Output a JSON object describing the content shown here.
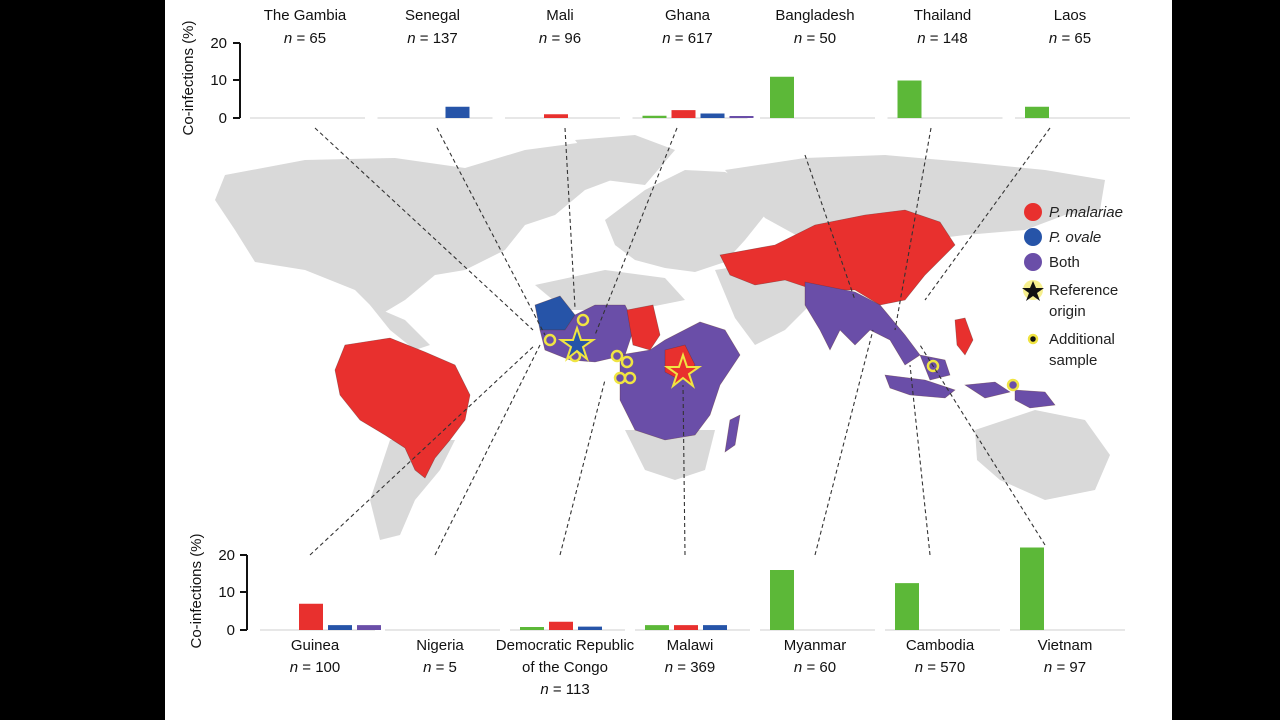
{
  "colors": {
    "p_malariae": "#e8302e",
    "p_ovale": "#2654a8",
    "both": "#6a4ea8",
    "mono_green": "#5cb838",
    "land": "#d9d9d9",
    "marker": "#f0e442"
  },
  "axis": {
    "ylabel": "Co-infections (%)",
    "top_ticks": [
      "20",
      "10",
      "0"
    ],
    "bottom_ticks": [
      "20",
      "10",
      "0"
    ],
    "ylim": [
      0,
      22
    ]
  },
  "legend": {
    "p_malariae": "P. malariae",
    "p_ovale": "P. ovale",
    "both": "Both",
    "reference_line1": "Reference",
    "reference_line2": "origin",
    "additional_line1": "Additional",
    "additional_line2": "sample"
  },
  "chart_data": [
    {
      "type": "bar",
      "panel": "top",
      "ylabel": "Co-infections (%)",
      "ylim": [
        0,
        20
      ],
      "countries": [
        {
          "name": "The Gambia",
          "n_label": "= 65",
          "values": [
            0,
            0,
            0,
            0
          ]
        },
        {
          "name": "Senegal",
          "n_label": "= 137",
          "values": [
            0,
            0,
            3,
            0
          ]
        },
        {
          "name": "Mali",
          "n_label": "= 96",
          "values": [
            0,
            1,
            0,
            0
          ]
        },
        {
          "name": "Ghana",
          "n_label": "= 617",
          "values": [
            0.6,
            2.1,
            1.2,
            0.2
          ]
        },
        {
          "name": "Bangladesh",
          "n_label": "= 50",
          "values": [
            11,
            0,
            0,
            0
          ]
        },
        {
          "name": "Thailand",
          "n_label": "= 148",
          "values": [
            10,
            0,
            0,
            0
          ]
        },
        {
          "name": "Laos",
          "n_label": "= 65",
          "values": [
            3,
            0,
            0,
            0
          ]
        }
      ]
    },
    {
      "type": "bar",
      "panel": "bottom",
      "ylabel": "Co-infections (%)",
      "ylim": [
        0,
        20
      ],
      "countries": [
        {
          "name": "Guinea",
          "name2": "",
          "n_label": "= 100",
          "values": [
            0,
            7,
            1.3,
            1.3
          ]
        },
        {
          "name": "Nigeria",
          "name2": "",
          "n_label": "= 5",
          "values": [
            0,
            0,
            0,
            0
          ]
        },
        {
          "name": "Democratic Republic",
          "name2": "of the Congo",
          "n_label": "= 113",
          "values": [
            0.8,
            2.2,
            0.9,
            0
          ]
        },
        {
          "name": "Malawi",
          "name2": "",
          "n_label": "= 369",
          "values": [
            1.3,
            1.3,
            1.3,
            0
          ]
        },
        {
          "name": "Myanmar",
          "name2": "",
          "n_label": "= 60",
          "values": [
            16,
            0,
            0,
            0
          ]
        },
        {
          "name": "Cambodia",
          "name2": "",
          "n_label": "= 570",
          "values": [
            12.5,
            0,
            0,
            0
          ]
        },
        {
          "name": "Vietnam",
          "name2": "",
          "n_label": "= 97",
          "values": [
            22,
            0,
            0,
            0
          ]
        }
      ]
    }
  ]
}
